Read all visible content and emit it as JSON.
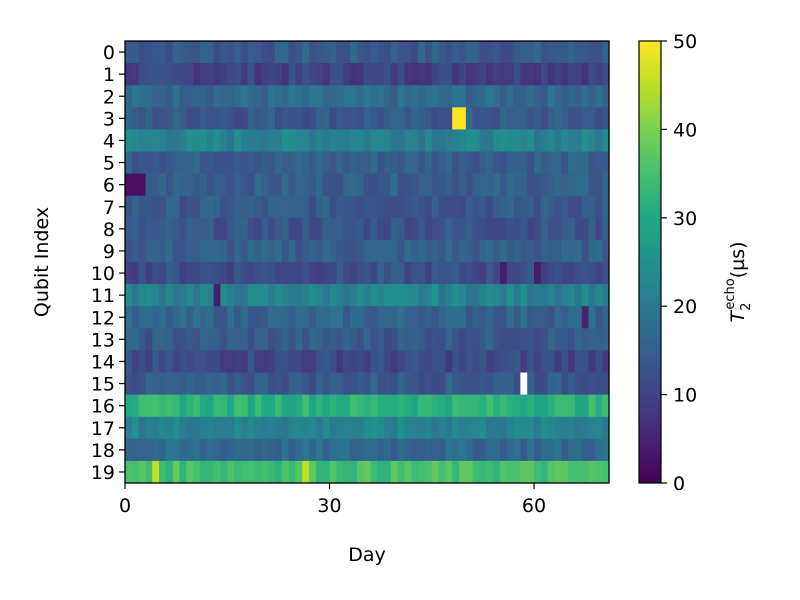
{
  "chart_data": {
    "type": "heatmap",
    "xlabel": "Day",
    "ylabel": "Qubit Index",
    "colorbar_label": "T₂echo (µs)",
    "colorbar_label_base": "T",
    "colorbar_label_sub": "2",
    "colorbar_label_sup": "echo",
    "colorbar_label_unit": "(µs)",
    "colormap": "viridis",
    "vmin": 0,
    "vmax": 50,
    "colorbar_ticks": [
      0,
      10,
      20,
      30,
      40,
      50
    ],
    "x_ticks": [
      0,
      30,
      60
    ],
    "xlim": [
      0,
      71
    ],
    "days": 71,
    "qubits": [
      "0",
      "1",
      "2",
      "3",
      "4",
      "5",
      "6",
      "7",
      "8",
      "9",
      "10",
      "11",
      "12",
      "13",
      "14",
      "15",
      "16",
      "17",
      "18",
      "19"
    ],
    "row_typical_t2": [
      14,
      10,
      17,
      14,
      22,
      15,
      15,
      14,
      13,
      15,
      12,
      22,
      16,
      14,
      11,
      14,
      32,
      22,
      17,
      35
    ],
    "notable_cells": [
      {
        "qubit": 3,
        "day": 48,
        "value": 50
      },
      {
        "qubit": 3,
        "day": 49,
        "value": 50
      },
      {
        "qubit": 6,
        "day": 0,
        "value": 2
      },
      {
        "qubit": 6,
        "day": 1,
        "value": 2
      },
      {
        "qubit": 6,
        "day": 2,
        "value": 2
      },
      {
        "qubit": 10,
        "day": 55,
        "value": 4
      },
      {
        "qubit": 10,
        "day": 60,
        "value": 4
      },
      {
        "qubit": 11,
        "day": 13,
        "value": 4
      },
      {
        "qubit": 12,
        "day": 67,
        "value": 5
      },
      {
        "qubit": 15,
        "day": 58,
        "value": null
      },
      {
        "qubit": 19,
        "day": 4,
        "value": 45
      },
      {
        "qubit": 19,
        "day": 26,
        "value": 45
      }
    ]
  }
}
